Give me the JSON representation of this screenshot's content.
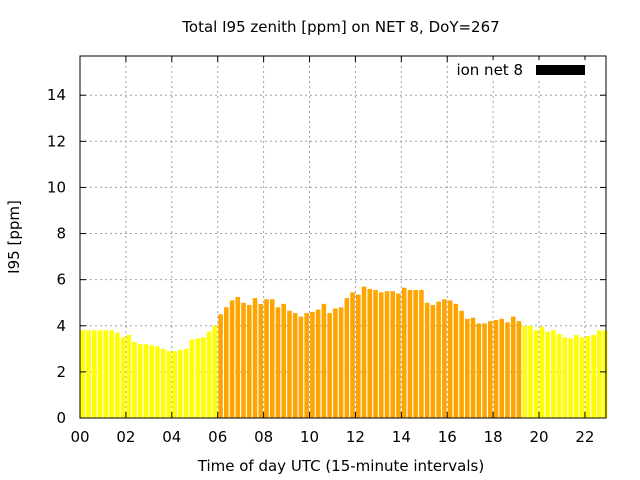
{
  "chart_data": {
    "type": "bar",
    "title": "Total I95 zenith [ppm] on NET 8, DoY=267",
    "xlabel": "Time of day UTC (15-minute intervals)",
    "ylabel": "I95 [ppm]",
    "ylim": [
      0,
      15.7
    ],
    "xlim": [
      0,
      22.917
    ],
    "y_ticks": [
      "0",
      "2",
      "4",
      "6",
      "8",
      "10",
      "12",
      "14"
    ],
    "x_ticks": [
      "00",
      "02",
      "04",
      "06",
      "08",
      "10",
      "12",
      "14",
      "16",
      "18",
      "20",
      "22"
    ],
    "grid": true,
    "legend": {
      "label": "ion net 8",
      "position": "top-right",
      "color": "#000000"
    },
    "interval_hours": 0.25,
    "colors": {
      "night": "#ffff00",
      "day": "#ffa500"
    },
    "day_range_hours": [
      6,
      19.25
    ],
    "values": [
      3.8,
      3.8,
      3.8,
      3.8,
      3.8,
      3.8,
      3.7,
      3.5,
      3.6,
      3.3,
      3.2,
      3.2,
      3.15,
      3.1,
      3.0,
      2.9,
      2.9,
      2.95,
      3.0,
      3.4,
      3.45,
      3.5,
      3.75,
      4.0,
      4.5,
      4.8,
      5.1,
      5.25,
      5.0,
      4.9,
      5.2,
      4.95,
      5.15,
      5.15,
      4.8,
      4.95,
      4.65,
      4.55,
      4.4,
      4.55,
      4.6,
      4.7,
      4.95,
      4.55,
      4.75,
      4.8,
      5.2,
      5.45,
      5.35,
      5.7,
      5.6,
      5.55,
      5.45,
      5.5,
      5.5,
      5.4,
      5.65,
      5.55,
      5.55,
      5.55,
      5.0,
      4.9,
      5.05,
      5.15,
      5.1,
      4.95,
      4.65,
      4.3,
      4.35,
      4.1,
      4.1,
      4.2,
      4.25,
      4.3,
      4.15,
      4.4,
      4.2,
      4.0,
      4.0,
      3.8,
      3.95,
      3.75,
      3.8,
      3.65,
      3.5,
      3.45,
      3.6,
      3.5,
      3.55,
      3.6,
      3.8,
      3.8
    ]
  }
}
